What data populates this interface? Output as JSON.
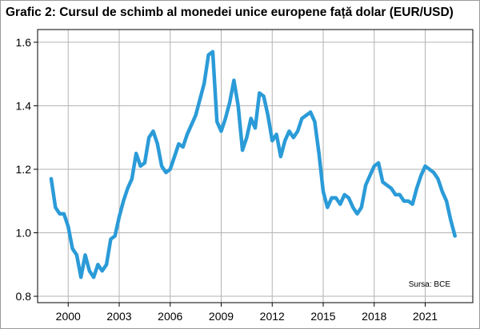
{
  "chart_data": {
    "type": "line",
    "title": "Grafic 2: Cursul de schimb al monedei unice europene față dolar (EUR/USD)",
    "source": "Sursa: BCE",
    "xlabel": "",
    "ylabel": "",
    "xlim": [
      1998.2,
      2023.8
    ],
    "ylim": [
      0.78,
      1.64
    ],
    "x_ticks": [
      {
        "value": 2000,
        "label": "2000"
      },
      {
        "value": 2003,
        "label": "2003"
      },
      {
        "value": 2006,
        "label": "2006"
      },
      {
        "value": 2009,
        "label": "2009"
      },
      {
        "value": 2012,
        "label": "2012"
      },
      {
        "value": 2015,
        "label": "2015"
      },
      {
        "value": 2018,
        "label": "2018"
      },
      {
        "value": 2021,
        "label": "2021"
      }
    ],
    "y_ticks": [
      {
        "value": 0.8,
        "label": "0.8"
      },
      {
        "value": 1.0,
        "label": "1.0"
      },
      {
        "value": 1.2,
        "label": "1.2"
      },
      {
        "value": 1.4,
        "label": "1.4"
      },
      {
        "value": 1.6,
        "label": "1.6"
      }
    ],
    "grid": true,
    "line_color": "#2b9bd8",
    "series": [
      {
        "x": [
          1999.0,
          1999.25,
          1999.5,
          1999.75,
          2000.0,
          2000.25,
          2000.5,
          2000.75,
          2001.0,
          2001.25,
          2001.5,
          2001.75,
          2002.0,
          2002.25,
          2002.5,
          2002.75,
          2003.0,
          2003.25,
          2003.5,
          2003.75,
          2004.0,
          2004.25,
          2004.5,
          2004.75,
          2005.0,
          2005.25,
          2005.5,
          2005.75,
          2006.0,
          2006.25,
          2006.5,
          2006.75,
          2007.0,
          2007.25,
          2007.5,
          2007.75,
          2008.0,
          2008.25,
          2008.5,
          2008.75,
          2009.0,
          2009.25,
          2009.5,
          2009.75,
          2010.0,
          2010.25,
          2010.5,
          2010.75,
          2011.0,
          2011.25,
          2011.5,
          2011.75,
          2012.0,
          2012.25,
          2012.5,
          2012.75,
          2013.0,
          2013.25,
          2013.5,
          2013.75,
          2014.0,
          2014.25,
          2014.5,
          2014.75,
          2015.0,
          2015.25,
          2015.5,
          2015.75,
          2016.0,
          2016.25,
          2016.5,
          2016.75,
          2017.0,
          2017.25,
          2017.5,
          2017.75,
          2018.0,
          2018.25,
          2018.5,
          2018.75,
          2019.0,
          2019.25,
          2019.5,
          2019.75,
          2020.0,
          2020.25,
          2020.5,
          2020.75,
          2021.0,
          2021.25,
          2021.5,
          2021.75,
          2022.0,
          2022.25,
          2022.5,
          2022.75
        ],
        "y": [
          1.17,
          1.08,
          1.06,
          1.06,
          1.02,
          0.95,
          0.93,
          0.86,
          0.93,
          0.88,
          0.86,
          0.9,
          0.88,
          0.9,
          0.98,
          0.99,
          1.05,
          1.1,
          1.14,
          1.17,
          1.25,
          1.21,
          1.22,
          1.3,
          1.32,
          1.28,
          1.21,
          1.19,
          1.2,
          1.24,
          1.28,
          1.27,
          1.31,
          1.34,
          1.37,
          1.42,
          1.47,
          1.56,
          1.57,
          1.35,
          1.32,
          1.36,
          1.41,
          1.48,
          1.4,
          1.26,
          1.3,
          1.36,
          1.33,
          1.44,
          1.43,
          1.37,
          1.29,
          1.31,
          1.24,
          1.29,
          1.32,
          1.3,
          1.32,
          1.36,
          1.37,
          1.38,
          1.35,
          1.25,
          1.13,
          1.08,
          1.11,
          1.11,
          1.09,
          1.12,
          1.11,
          1.08,
          1.06,
          1.08,
          1.15,
          1.18,
          1.21,
          1.22,
          1.16,
          1.15,
          1.14,
          1.12,
          1.12,
          1.1,
          1.1,
          1.09,
          1.14,
          1.18,
          1.21,
          1.2,
          1.19,
          1.17,
          1.13,
          1.1,
          1.04,
          0.99
        ]
      }
    ]
  }
}
